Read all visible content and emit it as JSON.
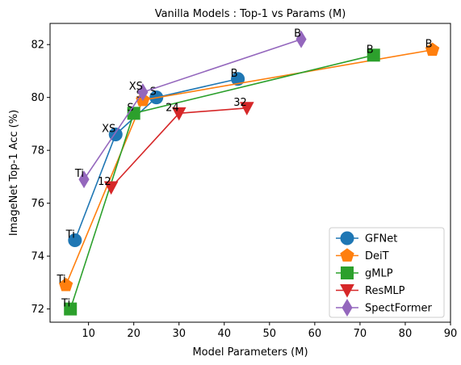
{
  "chart_data": {
    "type": "line",
    "title": "Vanilla Models : Top-1 vs Params (M)",
    "xlabel": "Model Parameters (M)",
    "ylabel": "ImageNet Top-1 Acc (%)",
    "xlim": [
      1.5,
      90
    ],
    "ylim": [
      71.5,
      82.8
    ],
    "xticks": [
      10,
      20,
      30,
      40,
      50,
      60,
      70,
      80,
      90
    ],
    "yticks": [
      72,
      74,
      76,
      78,
      80,
      82
    ],
    "grid": false,
    "legend_position": "lower-right",
    "series": [
      {
        "name": "GFNet",
        "color": "#1f77b4",
        "marker": "circle",
        "points": [
          {
            "x": 7,
            "y": 74.6,
            "label": "Ti"
          },
          {
            "x": 16,
            "y": 78.6,
            "label": "XS"
          },
          {
            "x": 25,
            "y": 80.0,
            "label": "S"
          },
          {
            "x": 43,
            "y": 80.7,
            "label": "B"
          }
        ]
      },
      {
        "name": "DeiT",
        "color": "#ff7f0e",
        "marker": "pentagon",
        "points": [
          {
            "x": 5,
            "y": 72.9,
            "label": "Ti"
          },
          {
            "x": 22,
            "y": 79.9,
            "label": "S"
          },
          {
            "x": 86,
            "y": 81.8,
            "label": "B"
          }
        ]
      },
      {
        "name": "gMLP",
        "color": "#2ca02c",
        "marker": "square",
        "points": [
          {
            "x": 6,
            "y": 72.0,
            "label": "Ti"
          },
          {
            "x": 20,
            "y": 79.4,
            "label": "S"
          },
          {
            "x": 73,
            "y": 81.6,
            "label": "B"
          }
        ]
      },
      {
        "name": "ResMLP",
        "color": "#d62728",
        "marker": "triangle-down",
        "points": [
          {
            "x": 15,
            "y": 76.6,
            "label": "12"
          },
          {
            "x": 30,
            "y": 79.4,
            "label": "24"
          },
          {
            "x": 45,
            "y": 79.6,
            "label": "32"
          }
        ]
      },
      {
        "name": "SpectFormer",
        "color": "#9467bd",
        "marker": "diamond",
        "points": [
          {
            "x": 9,
            "y": 76.9,
            "label": "Ti"
          },
          {
            "x": 22,
            "y": 80.2,
            "label": "XS"
          },
          {
            "x": 57,
            "y": 82.2,
            "label": "B"
          }
        ]
      }
    ]
  }
}
